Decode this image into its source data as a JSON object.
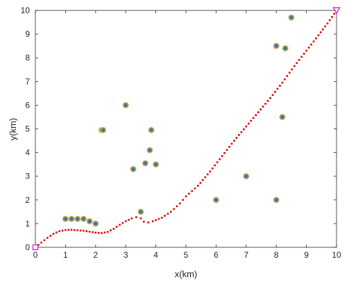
{
  "chart_data": {
    "type": "scatter",
    "xlabel": "x(km)",
    "ylabel": "y(km)",
    "xlim": [
      0,
      10
    ],
    "ylim": [
      0,
      10
    ],
    "xticks": [
      "0",
      "1",
      "2",
      "3",
      "4",
      "5",
      "6",
      "7",
      "8",
      "9",
      "10"
    ],
    "yticks": [
      "0",
      "1",
      "2",
      "3",
      "4",
      "5",
      "6",
      "7",
      "8",
      "9",
      "10"
    ],
    "grid": false,
    "legend": "none",
    "series": [
      {
        "marker": "circle-with-star",
        "fill_color": "#f2b84b",
        "star_color": "#1f77b4",
        "points": [
          [
            1.0,
            1.2
          ],
          [
            1.2,
            1.2
          ],
          [
            1.4,
            1.2
          ],
          [
            1.6,
            1.2
          ],
          [
            1.8,
            1.1
          ],
          [
            2.0,
            1.0
          ],
          [
            2.2,
            4.95
          ],
          [
            2.25,
            4.95
          ],
          [
            3.0,
            6.0
          ],
          [
            3.25,
            3.3
          ],
          [
            3.5,
            1.5
          ],
          [
            3.65,
            3.55
          ],
          [
            3.8,
            4.1
          ],
          [
            3.85,
            4.95
          ],
          [
            4.0,
            3.5
          ],
          [
            6.0,
            2.0
          ],
          [
            7.0,
            3.0
          ],
          [
            8.0,
            8.5
          ],
          [
            8.0,
            2.0
          ],
          [
            8.2,
            5.5
          ],
          [
            8.3,
            8.4
          ],
          [
            8.5,
            9.7
          ]
        ]
      },
      {
        "marker": "dotted-line",
        "line_color": "#e00000",
        "points": [
          [
            0,
            0
          ],
          [
            0.2,
            0.2
          ],
          [
            0.4,
            0.4
          ],
          [
            0.6,
            0.57
          ],
          [
            0.8,
            0.68
          ],
          [
            1.0,
            0.73
          ],
          [
            1.2,
            0.74
          ],
          [
            1.4,
            0.72
          ],
          [
            1.6,
            0.7
          ],
          [
            1.8,
            0.66
          ],
          [
            2.0,
            0.62
          ],
          [
            2.2,
            0.6
          ],
          [
            2.4,
            0.65
          ],
          [
            2.6,
            0.78
          ],
          [
            2.8,
            0.95
          ],
          [
            3.0,
            1.1
          ],
          [
            3.2,
            1.22
          ],
          [
            3.35,
            1.27
          ],
          [
            3.5,
            1.22
          ],
          [
            3.6,
            1.08
          ],
          [
            3.75,
            1.05
          ],
          [
            3.9,
            1.1
          ],
          [
            4.2,
            1.25
          ],
          [
            4.5,
            1.5
          ],
          [
            4.8,
            1.85
          ],
          [
            5.0,
            2.15
          ],
          [
            5.4,
            2.6
          ],
          [
            5.8,
            3.2
          ],
          [
            6.2,
            3.85
          ],
          [
            6.6,
            4.5
          ],
          [
            7.0,
            5.1
          ],
          [
            7.4,
            5.7
          ],
          [
            7.8,
            6.3
          ],
          [
            8.2,
            6.95
          ],
          [
            8.6,
            7.65
          ],
          [
            9.0,
            8.3
          ],
          [
            9.4,
            8.95
          ],
          [
            9.7,
            9.45
          ],
          [
            10.0,
            10.0
          ]
        ]
      },
      {
        "marker": "square",
        "color": "#e000e0",
        "points": [
          [
            0,
            0
          ]
        ]
      },
      {
        "marker": "triangle-down",
        "color": "#e000e0",
        "points": [
          [
            10,
            10
          ]
        ]
      }
    ]
  }
}
